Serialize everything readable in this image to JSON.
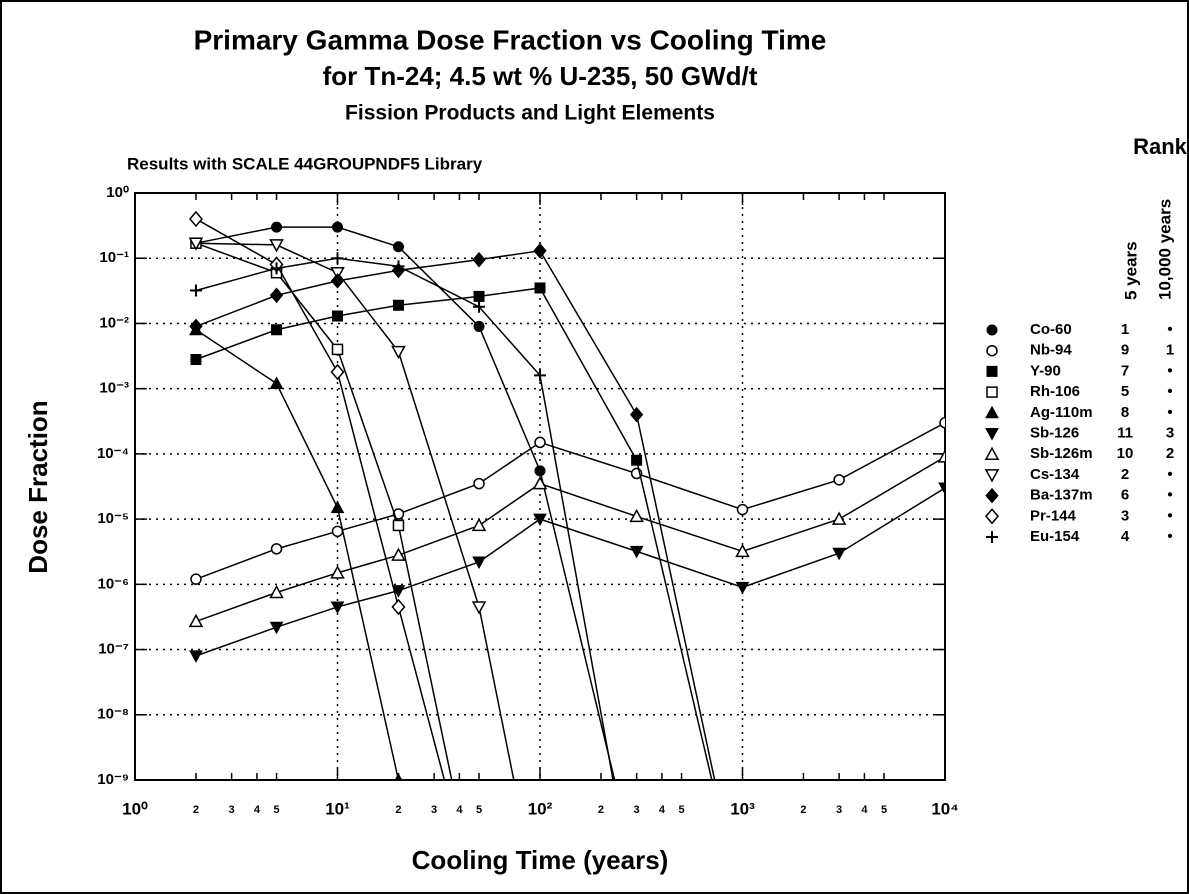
{
  "chart_data": {
    "type": "line",
    "title": "Primary Gamma Dose Fraction vs Cooling Time",
    "subtitle": "for Tn-24; 4.5 wt % U-235, 50 GWd/t",
    "subtitle2": "Fission Products and Light Elements",
    "annotation": "Results with SCALE 44GROUPNDF5 Library",
    "xlabel": "Cooling Time (years)",
    "ylabel": "Dose Fraction",
    "legend_title": "Rank",
    "rank_headers": [
      "5 years",
      "10,000 years"
    ],
    "xscale": "log",
    "yscale": "log",
    "grid": true,
    "legend": "right",
    "xlim": [
      1,
      10000
    ],
    "ylim": [
      1e-09,
      1
    ],
    "x": [
      2,
      5,
      10,
      20,
      50,
      100,
      300,
      1000,
      3000,
      10000
    ],
    "xticks": [
      {
        "value": 1,
        "label": "10⁰"
      },
      {
        "value": 2,
        "label": "2"
      },
      {
        "value": 3,
        "label": "3"
      },
      {
        "value": 4,
        "label": "4"
      },
      {
        "value": 5,
        "label": "5"
      },
      {
        "value": 10,
        "label": "10¹"
      },
      {
        "value": 20,
        "label": "2"
      },
      {
        "value": 30,
        "label": "3"
      },
      {
        "value": 40,
        "label": "4"
      },
      {
        "value": 50,
        "label": "5"
      },
      {
        "value": 100,
        "label": "10²"
      },
      {
        "value": 200,
        "label": "2"
      },
      {
        "value": 300,
        "label": "3"
      },
      {
        "value": 400,
        "label": "4"
      },
      {
        "value": 500,
        "label": "5"
      },
      {
        "value": 1000,
        "label": "10³"
      },
      {
        "value": 2000,
        "label": "2"
      },
      {
        "value": 3000,
        "label": "3"
      },
      {
        "value": 4000,
        "label": "4"
      },
      {
        "value": 5000,
        "label": "5"
      },
      {
        "value": 10000,
        "label": "10⁴"
      }
    ],
    "yticks": [
      {
        "value": 1,
        "label": "10⁰"
      },
      {
        "value": 0.1,
        "label": "10⁻¹"
      },
      {
        "value": 0.01,
        "label": "10⁻²"
      },
      {
        "value": 0.001,
        "label": "10⁻³"
      },
      {
        "value": 0.0001,
        "label": "10⁻⁴"
      },
      {
        "value": 1e-05,
        "label": "10⁻⁵"
      },
      {
        "value": 1e-06,
        "label": "10⁻⁶"
      },
      {
        "value": 1e-07,
        "label": "10⁻⁷"
      },
      {
        "value": 1e-08,
        "label": "10⁻⁸"
      },
      {
        "value": 1e-09,
        "label": "10⁻⁹"
      }
    ],
    "series": [
      {
        "name": "Co-60",
        "marker": "circle",
        "color": "#000000",
        "rank_5": 1,
        "rank_10000": "•",
        "values": [
          0.17,
          0.3,
          0.3,
          0.15,
          0.009,
          5.5e-05,
          4e-11,
          null,
          null,
          null
        ]
      },
      {
        "name": "Nb-94",
        "marker": "circle-open",
        "color": "#000000",
        "rank_5": 9,
        "rank_10000": 1,
        "values": [
          1.2e-06,
          3.5e-06,
          6.5e-06,
          1.2e-05,
          3.5e-05,
          0.00015,
          5e-05,
          1.4e-05,
          4e-05,
          0.0003
        ]
      },
      {
        "name": "Y-90",
        "marker": "square",
        "color": "#000000",
        "rank_5": 7,
        "rank_10000": "•",
        "values": [
          0.0028,
          0.008,
          0.013,
          0.019,
          0.026,
          0.035,
          8e-05,
          1e-11,
          null,
          null
        ]
      },
      {
        "name": "Rh-106",
        "marker": "square-open",
        "color": "#000000",
        "rank_5": 5,
        "rank_10000": "•",
        "values": [
          0.17,
          0.06,
          0.004,
          8e-06,
          1e-11,
          null,
          null,
          null,
          null,
          null
        ]
      },
      {
        "name": "Ag-110m",
        "marker": "triangle",
        "color": "#000000",
        "rank_5": 8,
        "rank_10000": "•",
        "values": [
          0.008,
          0.0012,
          1.5e-05,
          1e-09,
          null,
          null,
          null,
          null,
          null,
          null
        ]
      },
      {
        "name": "Sb-126",
        "marker": "triangle-down",
        "color": "#000000",
        "rank_5": 11,
        "rank_10000": 3,
        "values": [
          8e-08,
          2.2e-07,
          4.5e-07,
          8e-07,
          2.2e-06,
          1e-05,
          3.2e-06,
          9e-07,
          3e-06,
          3e-05
        ]
      },
      {
        "name": "Sb-126m",
        "marker": "triangle-open",
        "color": "#000000",
        "rank_5": 10,
        "rank_10000": 2,
        "values": [
          2.7e-07,
          7.5e-07,
          1.5e-06,
          2.8e-06,
          8e-06,
          3.5e-05,
          1.1e-05,
          3.2e-06,
          1e-05,
          9e-05
        ]
      },
      {
        "name": "Cs-134",
        "marker": "triangle-down-open",
        "color": "#000000",
        "rank_5": 2,
        "rank_10000": "•",
        "values": [
          0.17,
          0.16,
          0.06,
          0.0037,
          4.5e-07,
          1e-11,
          null,
          null,
          null,
          null
        ]
      },
      {
        "name": "Ba-137m",
        "marker": "diamond",
        "color": "#000000",
        "rank_5": 6,
        "rank_10000": "•",
        "values": [
          0.009,
          0.027,
          0.045,
          0.065,
          0.095,
          0.13,
          0.0004,
          1e-11,
          null,
          null
        ]
      },
      {
        "name": "Pr-144",
        "marker": "diamond-open",
        "color": "#000000",
        "rank_5": 3,
        "rank_10000": "•",
        "values": [
          0.4,
          0.08,
          0.0018,
          4.5e-07,
          1e-11,
          null,
          null,
          null,
          null,
          null
        ]
      },
      {
        "name": "Eu-154",
        "marker": "plus",
        "color": "#000000",
        "rank_5": 4,
        "rank_10000": "•",
        "values": [
          0.032,
          0.07,
          0.1,
          0.075,
          0.018,
          0.0016,
          1e-11,
          null,
          null,
          null
        ]
      }
    ]
  }
}
